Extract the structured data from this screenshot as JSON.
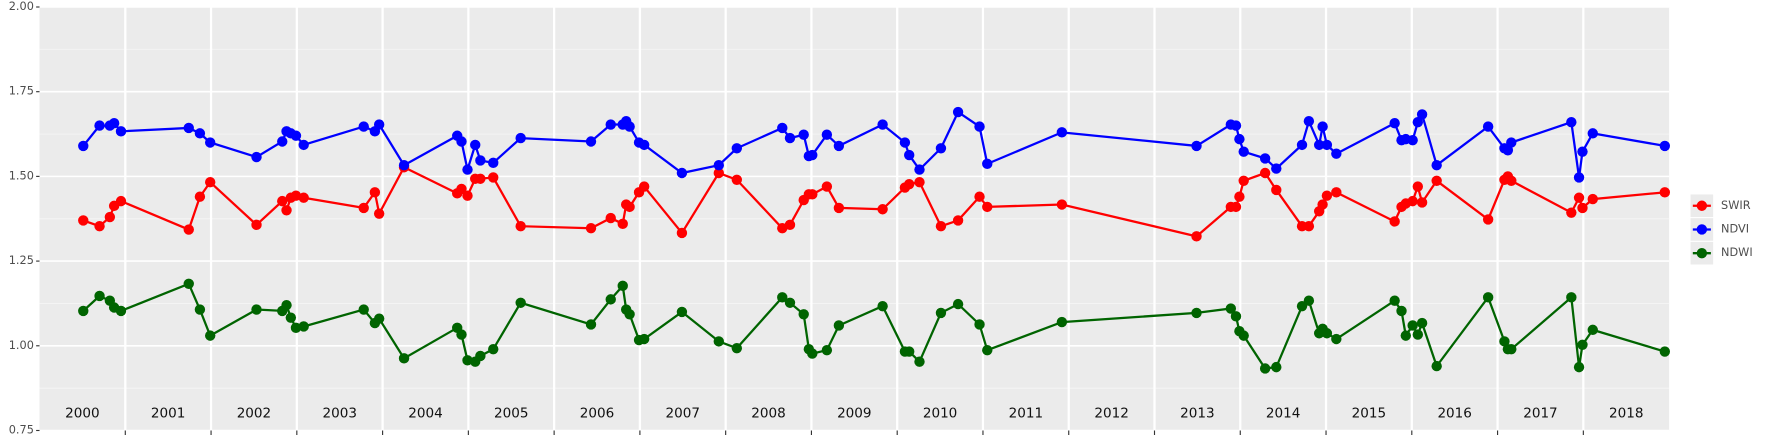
{
  "chart_data": {
    "type": "line",
    "x": [
      2000.51,
      2000.7,
      2000.82,
      2000.87,
      2000.95,
      2001.74,
      2001.87,
      2001.99,
      2002.53,
      2002.83,
      2002.88,
      2002.93,
      2002.99,
      2003.08,
      2003.78,
      2003.91,
      2003.96,
      2004.25,
      2004.87,
      2004.92,
      2004.99,
      2005.08,
      2005.14,
      2005.29,
      2005.61,
      2006.43,
      2006.66,
      2006.8,
      2006.84,
      2006.88,
      2006.99,
      2007.05,
      2007.49,
      2007.92,
      2008.13,
      2008.66,
      2008.75,
      2008.91,
      2008.97,
      2009.01,
      2009.18,
      2009.32,
      2009.83,
      2010.09,
      2010.14,
      2010.26,
      2010.51,
      2010.71,
      2010.96,
      2011.05,
      2011.92,
      2013.49,
      2013.89,
      2013.95,
      2013.99,
      2014.04,
      2014.29,
      2014.42,
      2014.72,
      2014.8,
      2014.92,
      2014.96,
      2015.01,
      2015.12,
      2015.8,
      2015.88,
      2015.93,
      2016.01,
      2016.07,
      2016.12,
      2016.29,
      2016.89,
      2017.08,
      2017.12,
      2017.16,
      2017.86,
      2017.95,
      2017.99,
      2018.11,
      2018.95
    ],
    "series": [
      {
        "name": "SWIR",
        "color": "#ff0000",
        "values": [
          1.37,
          1.353,
          1.38,
          1.413,
          1.427,
          1.343,
          1.44,
          1.483,
          1.357,
          1.427,
          1.4,
          1.437,
          1.443,
          1.437,
          1.407,
          1.453,
          1.39,
          1.527,
          1.45,
          1.463,
          1.443,
          1.493,
          1.493,
          1.497,
          1.353,
          1.347,
          1.377,
          1.36,
          1.417,
          1.41,
          1.453,
          1.47,
          1.333,
          1.51,
          1.49,
          1.347,
          1.357,
          1.43,
          1.447,
          1.447,
          1.47,
          1.407,
          1.403,
          1.467,
          1.477,
          1.483,
          1.353,
          1.37,
          1.44,
          1.41,
          1.417,
          1.323,
          1.41,
          1.41,
          1.44,
          1.487,
          1.51,
          1.46,
          1.353,
          1.353,
          1.397,
          1.417,
          1.443,
          1.453,
          1.367,
          1.41,
          1.42,
          1.427,
          1.47,
          1.423,
          1.487,
          1.373,
          1.49,
          1.5,
          1.487,
          1.393,
          1.437,
          1.407,
          1.433,
          1.453
        ]
      },
      {
        "name": "NDVI",
        "color": "#0000ff",
        "values": [
          1.59,
          1.65,
          1.65,
          1.657,
          1.633,
          1.643,
          1.627,
          1.6,
          1.557,
          1.603,
          1.633,
          1.627,
          1.62,
          1.593,
          1.647,
          1.633,
          1.653,
          1.533,
          1.62,
          1.603,
          1.52,
          1.593,
          1.547,
          1.54,
          1.613,
          1.603,
          1.653,
          1.653,
          1.663,
          1.647,
          1.6,
          1.593,
          1.51,
          1.533,
          1.583,
          1.643,
          1.613,
          1.623,
          1.56,
          1.563,
          1.623,
          1.59,
          1.653,
          1.6,
          1.563,
          1.52,
          1.583,
          1.69,
          1.647,
          1.537,
          1.63,
          1.59,
          1.653,
          1.65,
          1.61,
          1.573,
          1.553,
          1.523,
          1.593,
          1.663,
          1.593,
          1.647,
          1.593,
          1.567,
          1.657,
          1.607,
          1.61,
          1.607,
          1.66,
          1.683,
          1.533,
          1.647,
          1.583,
          1.577,
          1.6,
          1.66,
          1.497,
          1.573,
          1.627,
          1.59
        ]
      },
      {
        "name": "NDWI",
        "color": "#006400",
        "values": [
          1.103,
          1.147,
          1.133,
          1.113,
          1.103,
          1.183,
          1.107,
          1.03,
          1.107,
          1.103,
          1.12,
          1.083,
          1.053,
          1.057,
          1.107,
          1.067,
          1.08,
          0.963,
          1.053,
          1.033,
          0.957,
          0.953,
          0.97,
          0.99,
          1.127,
          1.063,
          1.137,
          1.177,
          1.107,
          1.093,
          1.017,
          1.02,
          1.1,
          1.013,
          0.993,
          1.143,
          1.127,
          1.093,
          0.99,
          0.977,
          0.987,
          1.06,
          1.117,
          0.983,
          0.983,
          0.953,
          1.097,
          1.123,
          1.063,
          0.987,
          1.07,
          1.097,
          1.11,
          1.087,
          1.043,
          1.03,
          0.933,
          0.937,
          1.117,
          1.133,
          1.037,
          1.05,
          1.037,
          1.02,
          1.133,
          1.103,
          1.03,
          1.06,
          1.033,
          1.067,
          0.94,
          1.143,
          1.013,
          0.99,
          0.99,
          1.143,
          0.937,
          1.003,
          1.047,
          0.983
        ]
      }
    ],
    "xlim": [
      2000,
      2019
    ],
    "xticks": [
      {
        "value": 2000.5,
        "label": "2000"
      },
      {
        "value": 2001.5,
        "label": "2001"
      },
      {
        "value": 2002.5,
        "label": "2002"
      },
      {
        "value": 2003.5,
        "label": "2003"
      },
      {
        "value": 2004.5,
        "label": "2004"
      },
      {
        "value": 2005.5,
        "label": "2005"
      },
      {
        "value": 2006.5,
        "label": "2006"
      },
      {
        "value": 2007.5,
        "label": "2007"
      },
      {
        "value": 2008.5,
        "label": "2008"
      },
      {
        "value": 2009.5,
        "label": "2009"
      },
      {
        "value": 2010.5,
        "label": "2010"
      },
      {
        "value": 2011.5,
        "label": "2011"
      },
      {
        "value": 2012.5,
        "label": "2012"
      },
      {
        "value": 2013.5,
        "label": "2013"
      },
      {
        "value": 2014.5,
        "label": "2014"
      },
      {
        "value": 2015.5,
        "label": "2015"
      },
      {
        "value": 2016.5,
        "label": "2016"
      },
      {
        "value": 2017.5,
        "label": "2017"
      },
      {
        "value": 2018.5,
        "label": "2018"
      }
    ],
    "ylim": [
      0.75,
      2.0
    ],
    "yticks": [
      {
        "value": 0.75,
        "label": "0.75"
      },
      {
        "value": 1.0,
        "label": "1.00"
      },
      {
        "value": 1.25,
        "label": "1.25"
      },
      {
        "value": 1.5,
        "label": "1.50"
      },
      {
        "value": 1.75,
        "label": "1.75"
      },
      {
        "value": 2.0,
        "label": "2.00"
      }
    ],
    "grid": true,
    "legend": "right"
  }
}
